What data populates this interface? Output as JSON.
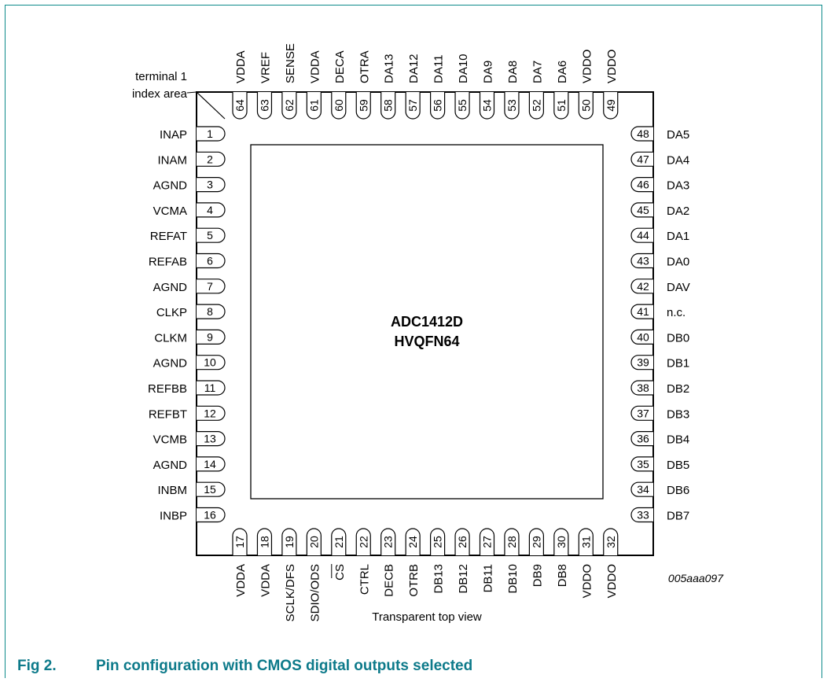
{
  "figure": {
    "number": "Fig 2.",
    "caption": "Pin configuration with CMOS digital outputs selected",
    "code": "005aaa097",
    "view_label": "Transparent top view"
  },
  "chip": {
    "name": "ADC1412D",
    "package": "HVQFN64",
    "index_label_line1": "terminal 1",
    "index_label_line2": "index area"
  },
  "pins_left": [
    {
      "num": "1",
      "name": "INAP"
    },
    {
      "num": "2",
      "name": "INAM"
    },
    {
      "num": "3",
      "name": "AGND"
    },
    {
      "num": "4",
      "name": "VCMA"
    },
    {
      "num": "5",
      "name": "REFAT"
    },
    {
      "num": "6",
      "name": "REFAB"
    },
    {
      "num": "7",
      "name": "AGND"
    },
    {
      "num": "8",
      "name": "CLKP"
    },
    {
      "num": "9",
      "name": "CLKM"
    },
    {
      "num": "10",
      "name": "AGND"
    },
    {
      "num": "11",
      "name": "REFBB"
    },
    {
      "num": "12",
      "name": "REFBT"
    },
    {
      "num": "13",
      "name": "VCMB"
    },
    {
      "num": "14",
      "name": "AGND"
    },
    {
      "num": "15",
      "name": "INBM"
    },
    {
      "num": "16",
      "name": "INBP"
    }
  ],
  "pins_bottom": [
    {
      "num": "17",
      "name": "VDDA"
    },
    {
      "num": "18",
      "name": "VDDA"
    },
    {
      "num": "19",
      "name": "SCLK/DFS"
    },
    {
      "num": "20",
      "name": "SDIO/ODS"
    },
    {
      "num": "21",
      "name": "CS"
    },
    {
      "num": "22",
      "name": "CTRL"
    },
    {
      "num": "23",
      "name": "DECB"
    },
    {
      "num": "24",
      "name": "OTRB"
    },
    {
      "num": "25",
      "name": "DB13"
    },
    {
      "num": "26",
      "name": "DB12"
    },
    {
      "num": "27",
      "name": "DB11"
    },
    {
      "num": "28",
      "name": "DB10"
    },
    {
      "num": "29",
      "name": "DB9"
    },
    {
      "num": "30",
      "name": "DB8"
    },
    {
      "num": "31",
      "name": "VDDO"
    },
    {
      "num": "32",
      "name": "VDDO"
    }
  ],
  "pins_right": [
    {
      "num": "48",
      "name": "DA5"
    },
    {
      "num": "47",
      "name": "DA4"
    },
    {
      "num": "46",
      "name": "DA3"
    },
    {
      "num": "45",
      "name": "DA2"
    },
    {
      "num": "44",
      "name": "DA1"
    },
    {
      "num": "43",
      "name": "DA0"
    },
    {
      "num": "42",
      "name": "DAV"
    },
    {
      "num": "41",
      "name": "n.c."
    },
    {
      "num": "40",
      "name": "DB0"
    },
    {
      "num": "39",
      "name": "DB1"
    },
    {
      "num": "38",
      "name": "DB2"
    },
    {
      "num": "37",
      "name": "DB3"
    },
    {
      "num": "36",
      "name": "DB4"
    },
    {
      "num": "35",
      "name": "DB5"
    },
    {
      "num": "34",
      "name": "DB6"
    },
    {
      "num": "33",
      "name": "DB7"
    }
  ],
  "pins_top": [
    {
      "num": "64",
      "name": "VDDA"
    },
    {
      "num": "63",
      "name": "VREF"
    },
    {
      "num": "62",
      "name": "SENSE"
    },
    {
      "num": "61",
      "name": "VDDA"
    },
    {
      "num": "60",
      "name": "DECA"
    },
    {
      "num": "59",
      "name": "OTRA"
    },
    {
      "num": "58",
      "name": "DA13"
    },
    {
      "num": "57",
      "name": "DA12"
    },
    {
      "num": "56",
      "name": "DA11"
    },
    {
      "num": "55",
      "name": "DA10"
    },
    {
      "num": "54",
      "name": "DA9"
    },
    {
      "num": "53",
      "name": "DA8"
    },
    {
      "num": "52",
      "name": "DA7"
    },
    {
      "num": "51",
      "name": "DA6"
    },
    {
      "num": "50",
      "name": "VDDO"
    },
    {
      "num": "49",
      "name": "VDDO"
    }
  ],
  "overbar_pins": [
    "21"
  ]
}
